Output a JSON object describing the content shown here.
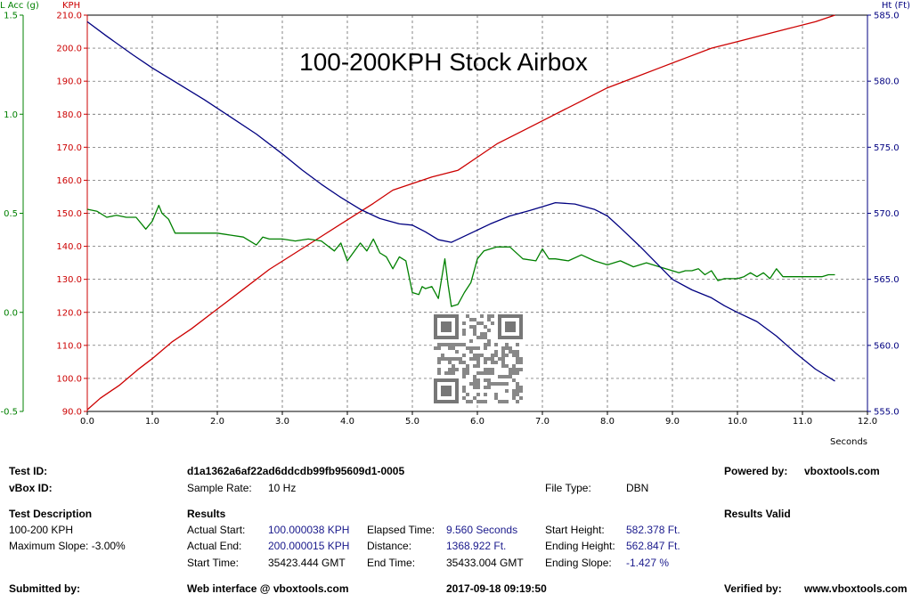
{
  "chart_data": {
    "type": "line",
    "title": "100-200KPH Stock Airbox",
    "xlabel": "Seconds",
    "xlim": [
      0,
      12
    ],
    "xticks": [
      "0.0",
      "1.0",
      "2.0",
      "3.0",
      "4.0",
      "5.0",
      "6.0",
      "7.0",
      "8.0",
      "9.0",
      "10.0",
      "11.0",
      "12.0"
    ],
    "grid": true,
    "axes": [
      {
        "id": "acc",
        "label": "L Acc (g)",
        "side": "left-outer",
        "color": "#008000",
        "ylim": [
          -0.5,
          1.5
        ],
        "ticks": [
          "-0.5",
          "0.0",
          "0.5",
          "1.0",
          "1.5"
        ]
      },
      {
        "id": "kph",
        "label": "KPH",
        "side": "left-inner",
        "color": "#cc0000",
        "ylim": [
          90,
          210
        ],
        "ticks": [
          "90.0",
          "100.0",
          "110.0",
          "120.0",
          "130.0",
          "140.0",
          "150.0",
          "160.0",
          "170.0",
          "180.0",
          "190.0",
          "200.0",
          "210.0"
        ]
      },
      {
        "id": "ht",
        "label": "Ht (Ft)",
        "side": "right",
        "color": "#000080",
        "ylim": [
          555,
          585
        ],
        "ticks": [
          "555.0",
          "560.0",
          "565.0",
          "570.0",
          "575.0",
          "580.0",
          "585.0"
        ]
      }
    ],
    "series": [
      {
        "name": "KPH",
        "axis": "kph",
        "color": "#cc0000",
        "x": [
          0,
          0.2,
          0.5,
          0.8,
          1.0,
          1.3,
          1.6,
          2.0,
          2.4,
          2.8,
          3.2,
          3.6,
          4.0,
          4.4,
          4.7,
          5.0,
          5.3,
          5.5,
          5.7,
          6.0,
          6.3,
          6.7,
          7.0,
          7.3,
          7.6,
          8.0,
          8.4,
          8.8,
          9.2,
          9.6,
          10.0,
          10.4,
          10.8,
          11.2,
          11.5
        ],
        "values": [
          90.5,
          94,
          98,
          103,
          106,
          111,
          115,
          121,
          127,
          133,
          138,
          143,
          148,
          153,
          157,
          159,
          161,
          162,
          163,
          167,
          171,
          175,
          178,
          181,
          184,
          188,
          191,
          194,
          197,
          200,
          202,
          204,
          206,
          208,
          210
        ]
      },
      {
        "name": "L Acc",
        "axis": "acc",
        "color": "#008000",
        "x": [
          0,
          0.15,
          0.3,
          0.45,
          0.6,
          0.75,
          0.9,
          1.0,
          1.1,
          1.15,
          1.25,
          1.35,
          1.45,
          1.6,
          1.8,
          2.0,
          2.2,
          2.4,
          2.6,
          2.7,
          2.8,
          2.9,
          3.0,
          3.2,
          3.4,
          3.6,
          3.8,
          3.9,
          4.0,
          4.2,
          4.3,
          4.4,
          4.5,
          4.6,
          4.7,
          4.8,
          4.9,
          5.0,
          5.1,
          5.15,
          5.2,
          5.3,
          5.4,
          5.5,
          5.55,
          5.6,
          5.7,
          5.8,
          5.9,
          6.0,
          6.1,
          6.3,
          6.5,
          6.7,
          6.9,
          7.0,
          7.1,
          7.2,
          7.4,
          7.6,
          7.8,
          8.0,
          8.2,
          8.4,
          8.6,
          8.8,
          9.0,
          9.1,
          9.2,
          9.3,
          9.4,
          9.5,
          9.6,
          9.7,
          9.8,
          10.0,
          10.1,
          10.2,
          10.3,
          10.4,
          10.5,
          10.6,
          10.7,
          10.8,
          11.0,
          11.1,
          11.2,
          11.3,
          11.4,
          11.5
        ],
        "values": [
          0.52,
          0.51,
          0.48,
          0.49,
          0.48,
          0.48,
          0.42,
          0.46,
          0.54,
          0.5,
          0.47,
          0.4,
          0.4,
          0.4,
          0.4,
          0.4,
          0.39,
          0.38,
          0.34,
          0.38,
          0.37,
          0.37,
          0.37,
          0.36,
          0.37,
          0.36,
          0.31,
          0.35,
          0.26,
          0.35,
          0.31,
          0.37,
          0.3,
          0.28,
          0.22,
          0.28,
          0.26,
          0.1,
          0.09,
          0.13,
          0.12,
          0.13,
          0.07,
          0.27,
          0.14,
          0.03,
          0.04,
          0.1,
          0.15,
          0.27,
          0.31,
          0.33,
          0.33,
          0.27,
          0.26,
          0.32,
          0.27,
          0.27,
          0.26,
          0.29,
          0.26,
          0.24,
          0.26,
          0.23,
          0.25,
          0.23,
          0.21,
          0.2,
          0.21,
          0.21,
          0.22,
          0.19,
          0.21,
          0.16,
          0.17,
          0.17,
          0.18,
          0.2,
          0.18,
          0.2,
          0.17,
          0.22,
          0.18,
          0.18,
          0.18,
          0.18,
          0.18,
          0.18,
          0.19,
          0.19
        ]
      },
      {
        "name": "Ht",
        "axis": "ht",
        "color": "#000080",
        "x": [
          0,
          0.3,
          0.7,
          1.0,
          1.4,
          1.8,
          2.2,
          2.6,
          3.0,
          3.3,
          3.6,
          3.9,
          4.2,
          4.5,
          4.8,
          5.0,
          5.2,
          5.4,
          5.6,
          5.9,
          6.2,
          6.5,
          6.8,
          7.0,
          7.2,
          7.5,
          7.8,
          8.0,
          8.2,
          8.5,
          8.8,
          9.0,
          9.3,
          9.6,
          9.8,
          10.0,
          10.3,
          10.6,
          10.9,
          11.2,
          11.5
        ],
        "values": [
          584.5,
          583.4,
          582.0,
          581.0,
          579.8,
          578.6,
          577.3,
          576.0,
          574.5,
          573.3,
          572.2,
          571.2,
          570.3,
          569.6,
          569.2,
          569.1,
          568.6,
          568.0,
          567.8,
          568.5,
          569.2,
          569.8,
          570.2,
          570.5,
          570.8,
          570.7,
          570.3,
          569.8,
          568.9,
          567.5,
          566.0,
          565.0,
          564.2,
          563.6,
          563.0,
          562.5,
          561.8,
          560.7,
          559.4,
          558.2,
          557.3
        ]
      }
    ]
  },
  "info": {
    "test_id_label": "Test ID:",
    "test_id_value": "d1a1362a6af22ad6ddcdb99fb95609d1-0005",
    "powered_label": "Powered by:",
    "powered_value": "vboxtools.com",
    "vbox_id_label": "vBox ID:",
    "sample_rate_label": "Sample Rate:",
    "sample_rate_value": "10 Hz",
    "file_type_label": "File Type:",
    "file_type_value": "DBN",
    "desc_label": "Test Description",
    "desc_line1": "100-200 KPH",
    "desc_line2": "Maximum Slope:  -3.00%",
    "results_label": "Results",
    "results_valid": "Results Valid",
    "actual_start_label": "Actual Start:",
    "actual_start_value": "100.000038 KPH",
    "actual_end_label": "Actual End:",
    "actual_end_value": "200.000015 KPH",
    "start_time_label": "Start Time:",
    "start_time_value": "35423.444 GMT",
    "elapsed_label": "Elapsed Time:",
    "elapsed_value": "9.560 Seconds",
    "distance_label": "Distance:",
    "distance_value": "1368.922 Ft.",
    "end_time_label": "End Time:",
    "end_time_value": "35433.004 GMT",
    "start_height_label": "Start Height:",
    "start_height_value": "582.378 Ft.",
    "end_height_label": "Ending Height:",
    "end_height_value": "562.847 Ft.",
    "end_slope_label": "Ending Slope:",
    "end_slope_value": "-1.427 %",
    "submitted_label": "Submitted by:",
    "web_label": "Web interface @ vboxtools.com",
    "datetime": "2017-09-18 09:19:50",
    "verified_label": "Verified by:",
    "verified_value": "www.vboxtools.com"
  }
}
